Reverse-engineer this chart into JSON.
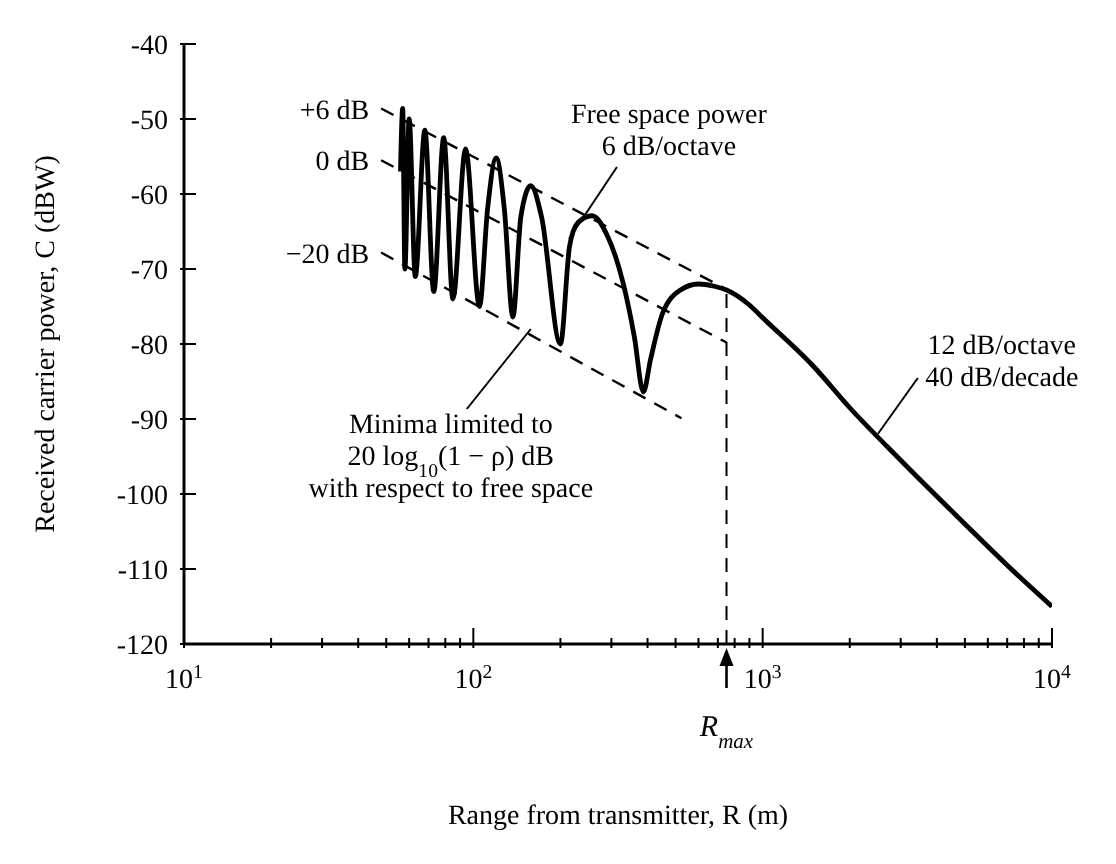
{
  "chart_data": {
    "type": "line",
    "xlabel": "Range from transmitter, R (m)",
    "ylabel": "Received carrier power, C (dBW)",
    "log": "x",
    "xlim": [
      10,
      10000
    ],
    "xticks": [
      {
        "value": 10,
        "label": "10$^{1}$"
      },
      {
        "value": 20,
        "label": null
      },
      {
        "value": 30,
        "label": null
      },
      {
        "value": 40,
        "label": null
      },
      {
        "value": 50,
        "label": null
      },
      {
        "value": 60,
        "label": null
      },
      {
        "value": 70,
        "label": null
      },
      {
        "value": 80,
        "label": null
      },
      {
        "value": 90,
        "label": null
      },
      {
        "value": 100,
        "label": "10$^{2}$"
      },
      {
        "value": 200,
        "label": null
      },
      {
        "value": 300,
        "label": null
      },
      {
        "value": 400,
        "label": null
      },
      {
        "value": 500,
        "label": null
      },
      {
        "value": 600,
        "label": null
      },
      {
        "value": 700,
        "label": null
      },
      {
        "value": 800,
        "label": null
      },
      {
        "value": 900,
        "label": null
      },
      {
        "value": 1000,
        "label": "10$^{3}$"
      },
      {
        "value": 2000,
        "label": null
      },
      {
        "value": 3000,
        "label": null
      },
      {
        "value": 4000,
        "label": null
      },
      {
        "value": 5000,
        "label": null
      },
      {
        "value": 6000,
        "label": null
      },
      {
        "value": 7000,
        "label": null
      },
      {
        "value": 8000,
        "label": null
      },
      {
        "value": 9000,
        "label": null
      },
      {
        "value": 10000,
        "label": "10$^{4}$"
      }
    ],
    "ylim": [
      -120,
      -40
    ],
    "yticks": [
      -120,
      -110,
      -100,
      -90,
      -80,
      -70,
      -60,
      -50,
      -40
    ],
    "marker": "none",
    "series": [
      {
        "color": "#000000",
        "line_style": "solid",
        "x": [
          56,
          57,
          58,
          60,
          63,
          68,
          73,
          79,
          85,
          94,
          105,
          112,
          120,
          128,
          137,
          146,
          158,
          172,
          200,
          215,
          230,
          257,
          290,
          330,
          360,
          387,
          410,
          450,
          520,
          600,
          680,
          750,
          900,
          1000,
          1500,
          2000,
          3000,
          5000,
          7000,
          10000
        ],
        "values": [
          -57,
          -48.6,
          -70,
          -50,
          -71,
          -51.5,
          -73,
          -52.5,
          -74,
          -54,
          -75,
          -62,
          -55.2,
          -62,
          -76.4,
          -63,
          -58.9,
          -63,
          -80,
          -67,
          -63.8,
          -62.9,
          -65.5,
          -72,
          -79,
          -86.4,
          -82,
          -76,
          -72.8,
          -72,
          -72.3,
          -72.8,
          -74.8,
          -76.5,
          -83,
          -88.5,
          -95.5,
          -104,
          -109.5,
          -115
        ]
      },
      {
        "name": "+6 dB",
        "color": "#000000",
        "line_style": "dashed",
        "x": [
          48,
          750
        ],
        "values": [
          -48.6,
          -72.7
        ]
      },
      {
        "name": "0 dB",
        "color": "#000000",
        "line_style": "dashed",
        "x": [
          48,
          750
        ],
        "values": [
          -55.5,
          -79.8
        ]
      },
      {
        "name": "−20 dB",
        "color": "#000000",
        "line_style": "dashed",
        "x": [
          48,
          524
        ],
        "values": [
          -67.8,
          -89.9
        ]
      }
    ],
    "ref_lines": [
      {
        "axis": "x",
        "value": 750,
        "label": "R$_{max}$",
        "line_style": "dashed",
        "color": "#000000"
      }
    ],
    "annotations": [
      {
        "text": "Free space power\n6 dB/octave",
        "x": 214,
        "y": -66
      },
      {
        "text": "12 dB/octave\n40 dB/decade",
        "x": 2500,
        "y": -92
      },
      {
        "text": "Minima limited to\n20 log$_{10}$(1 − ρ) dB\nwith respect to free space",
        "x": 158,
        "y": -78
      }
    ]
  }
}
